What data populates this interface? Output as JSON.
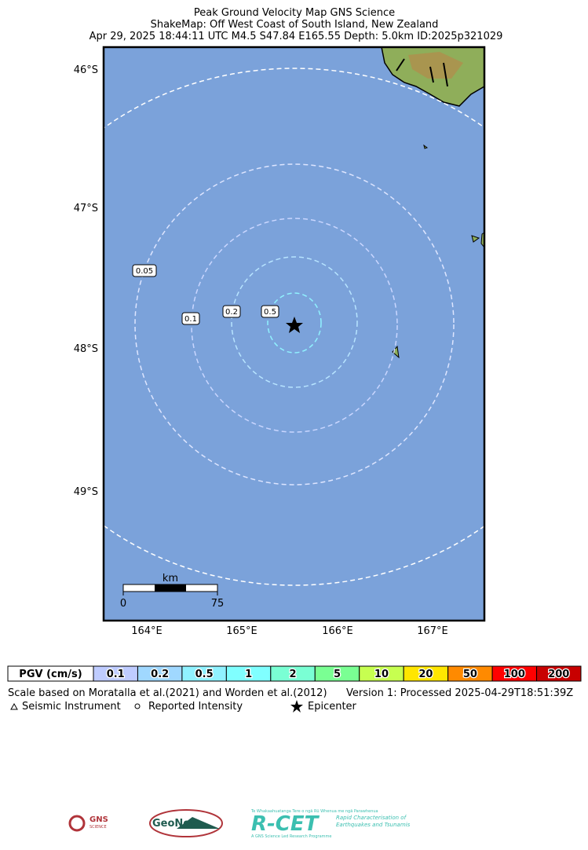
{
  "header": {
    "title_lines": [
      "Peak Ground Velocity Map GNS Science",
      "ShakeMap: Off West Coast of South Island, New Zealand",
      "Apr 29, 2025 18:44:11 UTC M4.5 S47.84 E165.55 Depth: 5.0km ID:2025p321029"
    ]
  },
  "map": {
    "lat_labels": [
      "46°S",
      "47°S",
      "48°S",
      "49°S"
    ],
    "lon_labels": [
      "164°E",
      "165°E",
      "166°E",
      "167°E"
    ],
    "contour_labels": [
      "0.05",
      "0.1",
      "0.2",
      "0.5"
    ],
    "scale_bar": {
      "unit": "km",
      "start": "0",
      "end": "75"
    }
  },
  "legend": {
    "label": "PGV (cm/s)",
    "bins": [
      {
        "label": "0.1",
        "color": "#bfccff"
      },
      {
        "label": "0.2",
        "color": "#a0d8ff"
      },
      {
        "label": "0.5",
        "color": "#90f2ff"
      },
      {
        "label": "1",
        "color": "#80ffff"
      },
      {
        "label": "2",
        "color": "#7affd4"
      },
      {
        "label": "5",
        "color": "#7aff93"
      },
      {
        "label": "10",
        "color": "#c7ff50"
      },
      {
        "label": "20",
        "color": "#ffe600"
      },
      {
        "label": "50",
        "color": "#ff8a00"
      },
      {
        "label": "100",
        "color": "#ff0000"
      },
      {
        "label": "200",
        "color": "#c80000"
      }
    ]
  },
  "footer": {
    "scale_note": "Scale based on Moratalla et al.(2021) and Worden et al.(2012)",
    "version": "Version 1: Processed 2025-04-29T18:51:39Z",
    "symbols": [
      "Seismic Instrument",
      "Reported Intensity",
      "Epicenter"
    ]
  },
  "logos": {
    "gns": "GNS",
    "gns_sub": "SCIENCE",
    "geonet": "GeoNet",
    "rcet": "R-CET",
    "rcet_top": "Te Whakaahuatanga Tere o ngā Rū Whenua me ngā Parawhenua",
    "rcet_sub": "Rapid Characterisation of Earthquakes and Tsunamis",
    "rcet_bottom": "A GNS Science Led Research Programme"
  }
}
